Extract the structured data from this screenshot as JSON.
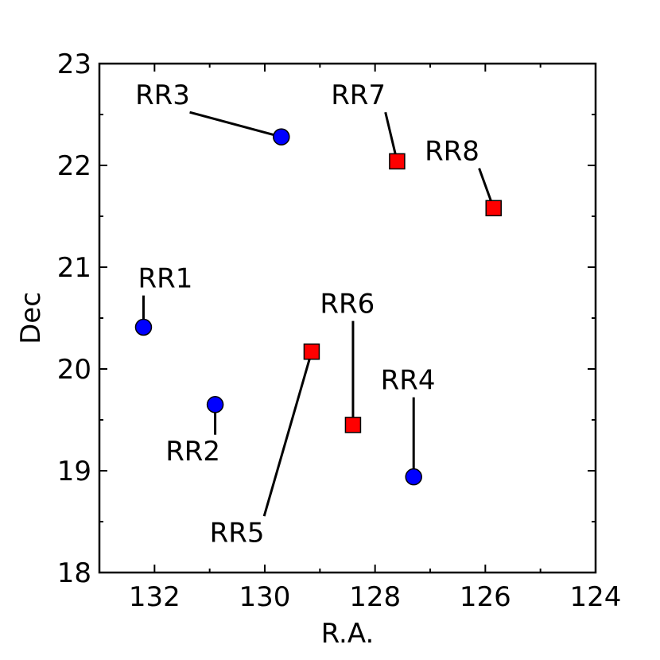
{
  "chart_data": {
    "type": "scatter",
    "xlabel": "R.A.",
    "ylabel": "Dec",
    "xlim": [
      133,
      124
    ],
    "ylim": [
      18,
      23
    ],
    "x_ticks": [
      132,
      130,
      128,
      126,
      124
    ],
    "y_ticks": [
      18,
      19,
      20,
      21,
      22,
      23
    ],
    "grid": false,
    "series": [
      {
        "marker": "circle",
        "color": "#0000ff",
        "points": [
          {
            "label": "RR1",
            "x": 132.2,
            "y": 20.41
          },
          {
            "label": "RR2",
            "x": 130.9,
            "y": 19.65
          },
          {
            "label": "RR3",
            "x": 129.7,
            "y": 22.28
          },
          {
            "label": "RR4",
            "x": 127.3,
            "y": 18.94
          }
        ]
      },
      {
        "marker": "square",
        "color": "#ff0000",
        "points": [
          {
            "label": "RR5",
            "x": 129.15,
            "y": 20.17
          },
          {
            "label": "RR6",
            "x": 128.4,
            "y": 19.45
          },
          {
            "label": "RR7",
            "x": 127.6,
            "y": 22.04
          },
          {
            "label": "RR8",
            "x": 125.85,
            "y": 21.58
          }
        ]
      }
    ],
    "annotations": [
      {
        "label": "RR1",
        "text_x": 132.3,
        "text_y": 20.8
      },
      {
        "label": "RR2",
        "text_x": 131.8,
        "text_y": 19.1
      },
      {
        "label": "RR3",
        "text_x": 132.35,
        "text_y": 22.6
      },
      {
        "label": "RR4",
        "text_x": 127.9,
        "text_y": 19.8
      },
      {
        "label": "RR5",
        "text_x": 131.0,
        "text_y": 18.3
      },
      {
        "label": "RR6",
        "text_x": 129.0,
        "text_y": 20.55
      },
      {
        "label": "RR7",
        "text_x": 128.8,
        "text_y": 22.6
      },
      {
        "label": "RR8",
        "text_x": 127.1,
        "text_y": 22.05
      }
    ]
  }
}
